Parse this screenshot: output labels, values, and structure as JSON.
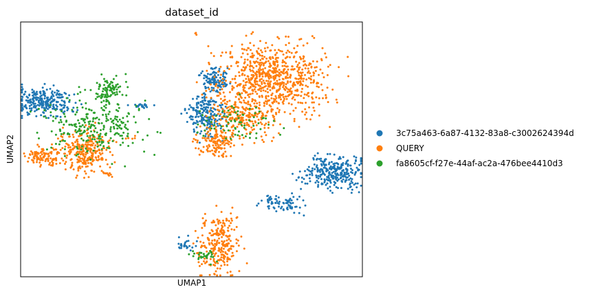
{
  "chart_data": {
    "type": "scatter",
    "title": "dataset_id",
    "xlabel": "UMAP1",
    "ylabel": "UMAP2",
    "xticks": "none",
    "yticks": "none",
    "grid": false,
    "legend_placement": "right",
    "series": [
      {
        "name": "3c75a463-6a87-4132-83a8-c3002624394d",
        "color": "#1f77b4",
        "clusters": [
          {
            "cx": -5.5,
            "cy": 4.5,
            "rx": 0.65,
            "ry": 0.35,
            "n": 260
          },
          {
            "cx": 1.4,
            "cy": 5.5,
            "rx": 0.3,
            "ry": 0.28,
            "n": 120
          },
          {
            "cx": 1.1,
            "cy": 4.0,
            "rx": 0.45,
            "ry": 0.55,
            "n": 200
          },
          {
            "cx": 6.3,
            "cy": 1.5,
            "rx": 0.65,
            "ry": 0.4,
            "n": 300
          },
          {
            "cx": 4.3,
            "cy": 0.2,
            "rx": 0.45,
            "ry": 0.22,
            "n": 80
          },
          {
            "cx": 0.3,
            "cy": -1.6,
            "rx": 0.25,
            "ry": 0.15,
            "n": 25
          },
          {
            "cx": -1.5,
            "cy": 4.4,
            "rx": 0.4,
            "ry": 0.06,
            "n": 20
          }
        ]
      },
      {
        "name": "QUERY",
        "color": "#ff7f0e",
        "clusters": [
          {
            "cx": 3.8,
            "cy": 5.6,
            "rx": 1.25,
            "ry": 0.95,
            "n": 750
          },
          {
            "cx": 2.6,
            "cy": 4.0,
            "rx": 0.7,
            "ry": 0.55,
            "n": 220
          },
          {
            "cx": 1.5,
            "cy": 2.8,
            "rx": 0.42,
            "ry": 0.35,
            "n": 140
          },
          {
            "cx": -3.8,
            "cy": 2.4,
            "rx": 0.6,
            "ry": 0.5,
            "n": 260
          },
          {
            "cx": -5.5,
            "cy": 2.2,
            "rx": 0.45,
            "ry": 0.22,
            "n": 110
          },
          {
            "cx": 1.6,
            "cy": -1.6,
            "rx": 0.48,
            "ry": 0.7,
            "n": 260
          },
          {
            "cx": -3.0,
            "cy": 1.5,
            "rx": 0.18,
            "ry": 0.1,
            "n": 12
          },
          {
            "cx": -2.0,
            "cy": 3.0,
            "rx": 0.12,
            "ry": 0.05,
            "n": 5
          },
          {
            "cx": 0.7,
            "cy": 7.5,
            "rx": 0.04,
            "ry": 0.04,
            "n": 3
          }
        ]
      },
      {
        "name": "fa8605cf-f27e-44af-ac2a-476bee4410d3",
        "color": "#2ca02c",
        "clusters": [
          {
            "cx": -3.5,
            "cy": 3.5,
            "rx": 1.1,
            "ry": 0.75,
            "n": 260
          },
          {
            "cx": -2.9,
            "cy": 5.0,
            "rx": 0.35,
            "ry": 0.3,
            "n": 90
          },
          {
            "cx": 2.3,
            "cy": 3.6,
            "rx": 0.8,
            "ry": 0.5,
            "n": 70
          },
          {
            "cx": 1.0,
            "cy": -2.1,
            "rx": 0.3,
            "ry": 0.15,
            "n": 30
          }
        ]
      }
    ],
    "xlim": [
      -6.5,
      7.5
    ],
    "ylim": [
      -3.0,
      8.0
    ]
  }
}
